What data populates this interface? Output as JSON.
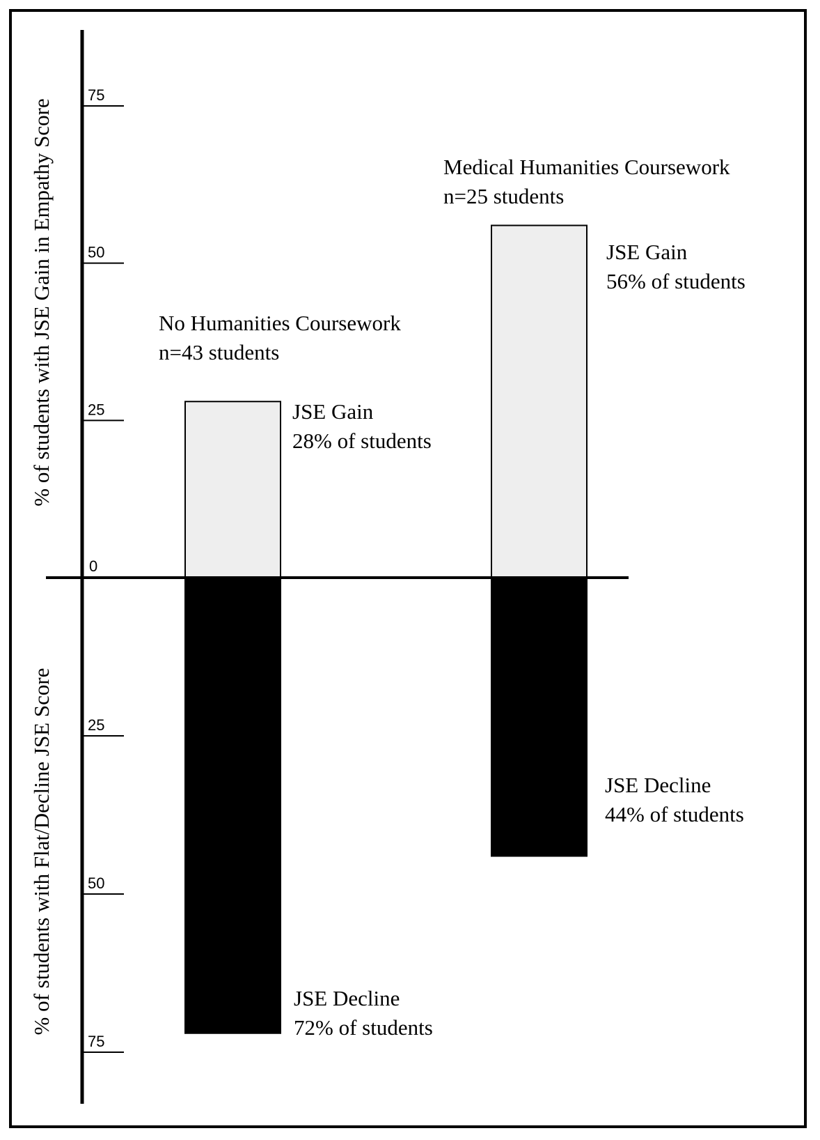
{
  "chart_data": {
    "type": "bar",
    "categories": [
      "No Humanities Coursework",
      "Medical Humanities Coursework"
    ],
    "group_labels": [
      {
        "title": "No Humanities Coursework",
        "n": "n=43 students"
      },
      {
        "title": "Medical Humanities Coursework",
        "n": "n=25 students"
      }
    ],
    "series": [
      {
        "name": "JSE Gain",
        "values": [
          28,
          56
        ],
        "labels": [
          [
            "JSE Gain",
            "28% of students"
          ],
          [
            "JSE Gain",
            "56% of students"
          ]
        ],
        "color": "#eeeeee"
      },
      {
        "name": "JSE Decline",
        "values": [
          72,
          44
        ],
        "labels": [
          [
            "JSE Decline",
            "72% of students"
          ],
          [
            "JSE Decline",
            "44% of students"
          ]
        ],
        "color": "#000000"
      }
    ],
    "ylabel_top": "% of students with JSE Gain in Empathy Score",
    "ylabel_bottom": "% of students with Flat/Decline JSE Score",
    "ticks_top": [
      75,
      50,
      25
    ],
    "ticks_bottom": [
      25,
      50,
      75
    ],
    "zero_label": "0",
    "ylim_top": [
      0,
      75
    ],
    "ylim_bottom": [
      0,
      75
    ],
    "grid": false,
    "legend": "none"
  }
}
